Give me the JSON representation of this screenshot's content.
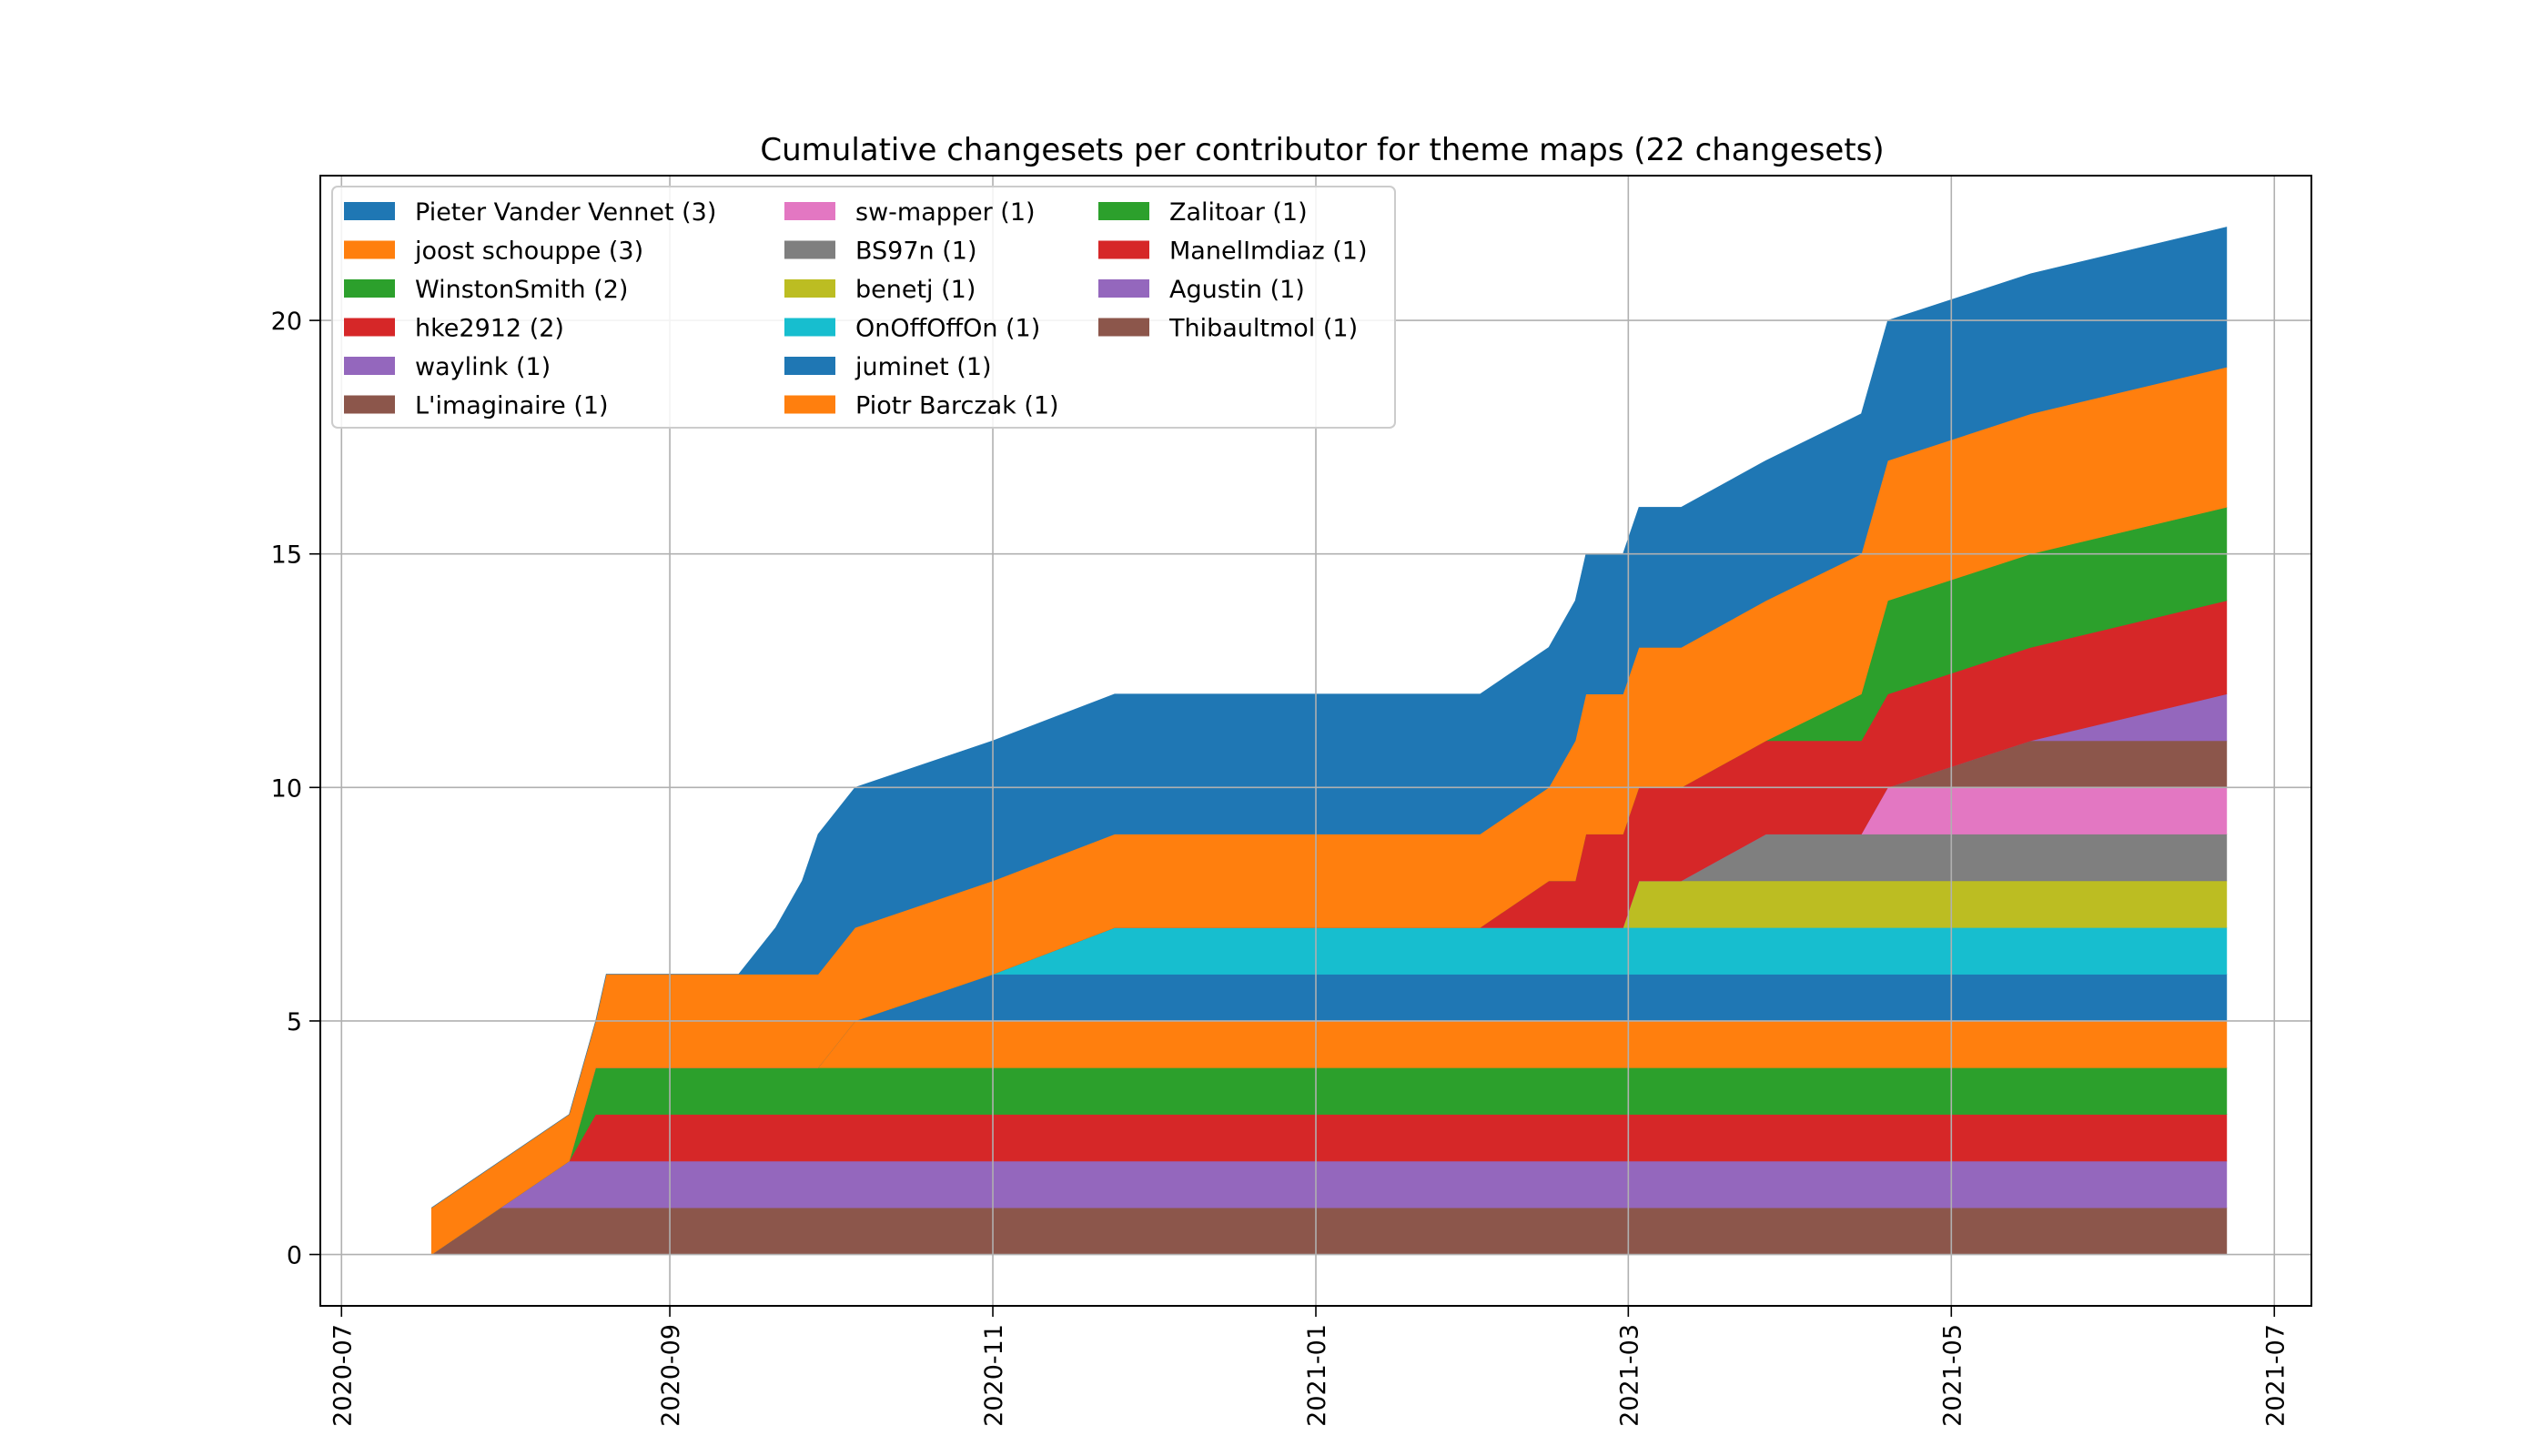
{
  "chart_data": {
    "type": "area",
    "stacked": true,
    "title": "Cumulative changesets per contributor for theme maps (22 changesets)",
    "xlabel": "",
    "ylabel": "",
    "x_tick_labels": [
      "2020-07",
      "2020-09",
      "2020-11",
      "2021-01",
      "2021-03",
      "2021-05",
      "2021-07"
    ],
    "y_tick_labels": [
      "0",
      "5",
      "10",
      "15",
      "20"
    ],
    "y_ticks": [
      0,
      5,
      10,
      15,
      20
    ],
    "ylim": [
      -1.1,
      23.1
    ],
    "xlim": [
      "2020-06-27",
      "2021-07-08"
    ],
    "grid": true,
    "legend_position": "top-left",
    "legend_columns": 3,
    "x": [
      "2020-07-18",
      "2020-07-31",
      "2020-08-13",
      "2020-08-18",
      "2020-08-20",
      "2020-09-14",
      "2020-09-21",
      "2020-09-26",
      "2020-09-29",
      "2020-10-06",
      "2020-11-01",
      "2020-11-24",
      "2021-02-01",
      "2021-02-14",
      "2021-02-19",
      "2021-02-21",
      "2021-02-28",
      "2021-03-03",
      "2021-03-11",
      "2021-03-27",
      "2021-04-14",
      "2021-04-19",
      "2021-05-16",
      "2021-06-22"
    ],
    "series": [
      {
        "name": "Thibaultmol (1)",
        "color": "#8c564b",
        "values": [
          0,
          1,
          1,
          1,
          1,
          1,
          1,
          1,
          1,
          1,
          1,
          1,
          1,
          1,
          1,
          1,
          1,
          1,
          1,
          1,
          1,
          1,
          1,
          1
        ]
      },
      {
        "name": "Agustin (1)",
        "color": "#9467bd",
        "values": [
          0,
          0,
          1,
          1,
          1,
          1,
          1,
          1,
          1,
          1,
          1,
          1,
          1,
          1,
          1,
          1,
          1,
          1,
          1,
          1,
          1,
          1,
          1,
          1
        ]
      },
      {
        "name": "ManelImdiaz (1)",
        "color": "#d62728",
        "values": [
          0,
          0,
          0,
          1,
          1,
          1,
          1,
          1,
          1,
          1,
          1,
          1,
          1,
          1,
          1,
          1,
          1,
          1,
          1,
          1,
          1,
          1,
          1,
          1
        ]
      },
      {
        "name": "Zalitoar (1)",
        "color": "#2ca02c",
        "values": [
          0,
          0,
          0,
          1,
          1,
          1,
          1,
          1,
          1,
          1,
          1,
          1,
          1,
          1,
          1,
          1,
          1,
          1,
          1,
          1,
          1,
          1,
          1,
          1
        ]
      },
      {
        "name": "Piotr Barczak (1)",
        "color": "#ff7f0e",
        "values": [
          0,
          0,
          0,
          0,
          0,
          0,
          0,
          0,
          0,
          1,
          1,
          1,
          1,
          1,
          1,
          1,
          1,
          1,
          1,
          1,
          1,
          1,
          1,
          1
        ]
      },
      {
        "name": "juminet (1)",
        "color": "#1f77b4",
        "values": [
          0,
          0,
          0,
          0,
          0,
          0,
          0,
          0,
          0,
          0,
          1,
          1,
          1,
          1,
          1,
          1,
          1,
          1,
          1,
          1,
          1,
          1,
          1,
          1
        ]
      },
      {
        "name": "OnOffOffOn (1)",
        "color": "#17becf",
        "values": [
          0,
          0,
          0,
          0,
          0,
          0,
          0,
          0,
          0,
          0,
          0,
          1,
          1,
          1,
          1,
          1,
          1,
          1,
          1,
          1,
          1,
          1,
          1,
          1
        ]
      },
      {
        "name": "benetj (1)",
        "color": "#bcbd22",
        "values": [
          0,
          0,
          0,
          0,
          0,
          0,
          0,
          0,
          0,
          0,
          0,
          0,
          0,
          0,
          0,
          0,
          0,
          1,
          1,
          1,
          1,
          1,
          1,
          1
        ]
      },
      {
        "name": "BS97n (1)",
        "color": "#7f7f7f",
        "values": [
          0,
          0,
          0,
          0,
          0,
          0,
          0,
          0,
          0,
          0,
          0,
          0,
          0,
          0,
          0,
          0,
          0,
          0,
          0,
          1,
          1,
          1,
          1,
          1
        ]
      },
      {
        "name": "sw-mapper (1)",
        "color": "#e377c2",
        "values": [
          0,
          0,
          0,
          0,
          0,
          0,
          0,
          0,
          0,
          0,
          0,
          0,
          0,
          0,
          0,
          0,
          0,
          0,
          0,
          0,
          0,
          1,
          1,
          1
        ]
      },
      {
        "name": "L'imaginaire (1)",
        "color": "#8c564b",
        "values": [
          0,
          0,
          0,
          0,
          0,
          0,
          0,
          0,
          0,
          0,
          0,
          0,
          0,
          0,
          0,
          0,
          0,
          0,
          0,
          0,
          0,
          0,
          1,
          1
        ]
      },
      {
        "name": "waylink (1)",
        "color": "#9467bd",
        "values": [
          0,
          0,
          0,
          0,
          0,
          0,
          0,
          0,
          0,
          0,
          0,
          0,
          0,
          0,
          0,
          0,
          0,
          0,
          0,
          0,
          0,
          0,
          0,
          1
        ]
      },
      {
        "name": "hke2912 (2)",
        "color": "#d62728",
        "values": [
          0,
          0,
          0,
          0,
          0,
          0,
          0,
          0,
          0,
          0,
          0,
          0,
          0,
          1,
          1,
          2,
          2,
          2,
          2,
          2,
          2,
          2,
          2,
          2
        ]
      },
      {
        "name": "WinstonSmith (2)",
        "color": "#2ca02c",
        "values": [
          0,
          0,
          0,
          0,
          0,
          0,
          0,
          0,
          0,
          0,
          0,
          0,
          0,
          0,
          0,
          0,
          0,
          0,
          0,
          0,
          1,
          2,
          2,
          2
        ]
      },
      {
        "name": "joost schouppe (3)",
        "color": "#ff7f0e",
        "values": [
          1,
          1,
          1,
          1,
          2,
          2,
          2,
          2,
          2,
          2,
          2,
          2,
          2,
          2,
          3,
          3,
          3,
          3,
          3,
          3,
          3,
          3,
          3,
          3
        ]
      },
      {
        "name": "Pieter Vander Vennet (3)",
        "color": "#1f77b4",
        "values": [
          0,
          0,
          0,
          0,
          0,
          0,
          1,
          2,
          3,
          3,
          3,
          3,
          3,
          3,
          3,
          3,
          3,
          3,
          3,
          3,
          3,
          3,
          3,
          3
        ]
      }
    ],
    "legend": [
      {
        "name": "Pieter Vander Vennet (3)",
        "color": "#1f77b4"
      },
      {
        "name": "joost schouppe (3)",
        "color": "#ff7f0e"
      },
      {
        "name": "WinstonSmith (2)",
        "color": "#2ca02c"
      },
      {
        "name": "hke2912 (2)",
        "color": "#d62728"
      },
      {
        "name": "waylink (1)",
        "color": "#9467bd"
      },
      {
        "name": "L'imaginaire (1)",
        "color": "#8c564b"
      },
      {
        "name": "sw-mapper (1)",
        "color": "#e377c2"
      },
      {
        "name": "BS97n (1)",
        "color": "#7f7f7f"
      },
      {
        "name": "benetj (1)",
        "color": "#bcbd22"
      },
      {
        "name": "OnOffOffOn (1)",
        "color": "#17becf"
      },
      {
        "name": "juminet (1)",
        "color": "#1f77b4"
      },
      {
        "name": "Piotr Barczak (1)",
        "color": "#ff7f0e"
      },
      {
        "name": "Zalitoar (1)",
        "color": "#2ca02c"
      },
      {
        "name": "ManelImdiaz (1)",
        "color": "#d62728"
      },
      {
        "name": "Agustin (1)",
        "color": "#9467bd"
      },
      {
        "name": "Thibaultmol (1)",
        "color": "#8c564b"
      }
    ]
  }
}
